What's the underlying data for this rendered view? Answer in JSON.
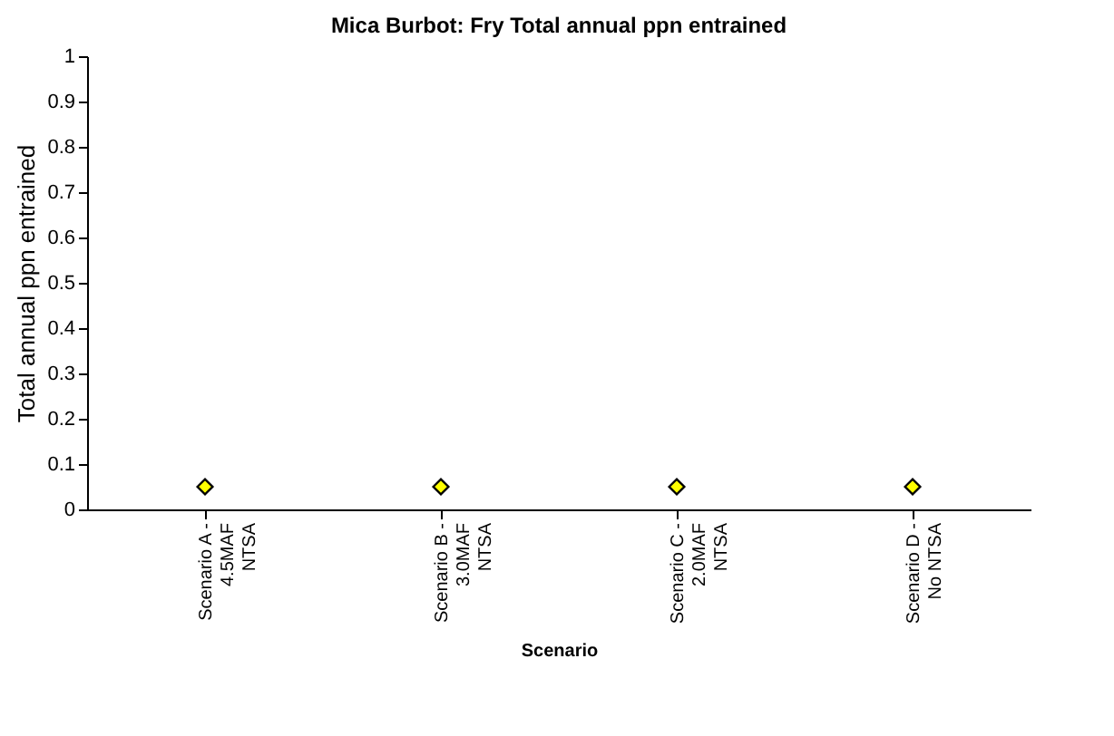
{
  "chart_data": {
    "type": "scatter",
    "title": "Mica Burbot:  Fry Total annual ppn entrained",
    "xlabel": "Scenario",
    "ylabel": "Total annual ppn entrained",
    "categories": [
      "Scenario A -\n4.5MAF\nNTSA",
      "Scenario B -\n3.0MAF\nNTSA",
      "Scenario C -\n2.0MAF\nNTSA",
      "Scenario D -\nNo NTSA"
    ],
    "values": [
      0.05,
      0.05,
      0.05,
      0.05
    ],
    "color": "#ffff00",
    "marker": "diamond",
    "ylim": [
      0,
      1
    ],
    "yticks": [
      0,
      0.1,
      0.2,
      0.3,
      0.4,
      0.5,
      0.6,
      0.7,
      0.8,
      0.9,
      1
    ],
    "grid": false
  }
}
